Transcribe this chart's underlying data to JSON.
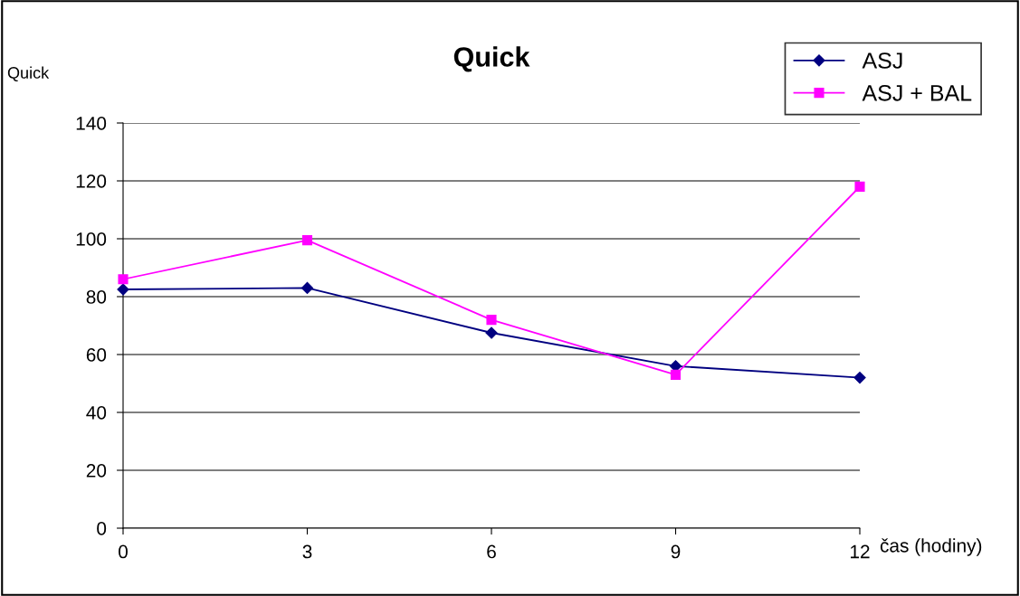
{
  "chart_data": {
    "type": "line",
    "title": "Quick",
    "xlabel": "čas (hodiny)",
    "ylabel": "Quick",
    "x": [
      0,
      3,
      6,
      9,
      12
    ],
    "series": [
      {
        "name": "ASJ",
        "color": "#000080",
        "marker": "diamond",
        "values": [
          82.5,
          83,
          67.5,
          56,
          52
        ]
      },
      {
        "name": "ASJ + BAL",
        "color": "#ff00ff",
        "marker": "square",
        "values": [
          86,
          99.5,
          72,
          53,
          118
        ]
      }
    ],
    "xlim": [
      0,
      12
    ],
    "xticks": [
      0,
      3,
      6,
      9,
      12
    ],
    "ylim": [
      0,
      140
    ],
    "yticks": [
      0,
      20,
      40,
      60,
      80,
      100,
      120,
      140
    ],
    "grid": "y",
    "legend": "top right",
    "line_style": "solid"
  }
}
